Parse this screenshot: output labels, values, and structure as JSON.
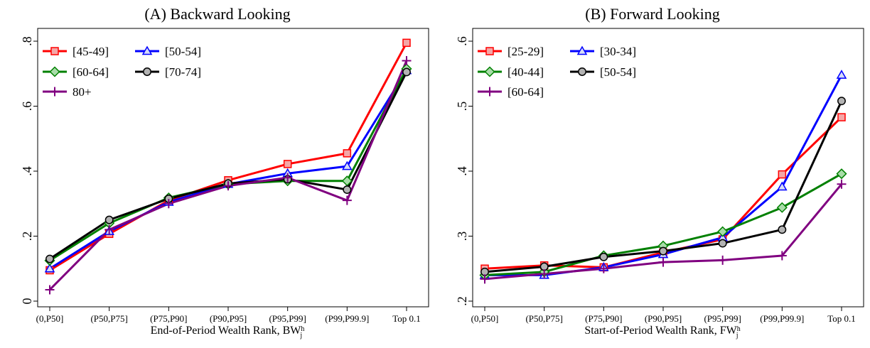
{
  "chart_data": [
    {
      "type": "line",
      "title_prefix": "(A)",
      "title": "Backward Looking",
      "xlabel": "End-of-Period Wealth Rank, BW",
      "xlabel_sup": "h",
      "xlabel_sub": "j",
      "categories": [
        "(0,P50]",
        "(P50,P75]",
        "(P75,P90]",
        "(P90,P95]",
        "(P95,P99]",
        "(P99,P99.9]",
        "Top 0.1"
      ],
      "ylim": [
        0,
        0.8
      ],
      "yticks": [
        0,
        0.2,
        0.4,
        0.6,
        0.8
      ],
      "ytick_labels": [
        "0",
        ".2",
        ".4",
        ".6",
        ".8"
      ],
      "grid": false,
      "legend_position": "top-left",
      "series": [
        {
          "name": "[45-49]",
          "color": "#ff0000",
          "marker": "square",
          "values": [
            0.095,
            0.207,
            0.31,
            0.372,
            0.422,
            0.455,
            0.795
          ]
        },
        {
          "name": "[50-54]",
          "color": "#0000ff",
          "marker": "triangle",
          "values": [
            0.1,
            0.215,
            0.305,
            0.36,
            0.393,
            0.415,
            0.71
          ]
        },
        {
          "name": "[60-64]",
          "color": "#008000",
          "marker": "diamond",
          "values": [
            0.125,
            0.24,
            0.318,
            0.36,
            0.37,
            0.37,
            0.715
          ]
        },
        {
          "name": "[70-74]",
          "color": "#000000",
          "marker": "circle",
          "values": [
            0.13,
            0.25,
            0.315,
            0.362,
            0.375,
            0.343,
            0.705
          ]
        },
        {
          "name": "80+",
          "color": "#800080",
          "marker": "plus",
          "values": [
            0.035,
            0.22,
            0.3,
            0.355,
            0.38,
            0.31,
            0.74
          ]
        }
      ]
    },
    {
      "type": "line",
      "title_prefix": "(B)",
      "title": "Forward Looking",
      "xlabel": "Start-of-Period Wealth Rank, FW",
      "xlabel_sup": "h",
      "xlabel_sub": "j",
      "categories": [
        "(0,P50]",
        "(P50,P75]",
        "(P75,P90]",
        "(P90,P95]",
        "(P95,P99]",
        "(P99,P99.9]",
        "Top 0.1"
      ],
      "ylim": [
        0.2,
        0.6
      ],
      "yticks": [
        0.2,
        0.3,
        0.4,
        0.5,
        0.6
      ],
      "ytick_labels": [
        ".2",
        ".3",
        ".4",
        ".5",
        ".6"
      ],
      "grid": false,
      "legend_position": "top-left",
      "series": [
        {
          "name": "[25-29]",
          "color": "#ff0000",
          "marker": "square",
          "values": [
            0.25,
            0.255,
            0.252,
            0.275,
            0.295,
            0.395,
            0.483
          ]
        },
        {
          "name": "[30-34]",
          "color": "#0000ff",
          "marker": "triangle",
          "values": [
            0.24,
            0.24,
            0.252,
            0.272,
            0.298,
            0.376,
            0.548
          ]
        },
        {
          "name": "[40-44]",
          "color": "#008000",
          "marker": "diamond",
          "values": [
            0.24,
            0.245,
            0.27,
            0.285,
            0.307,
            0.344,
            0.396
          ]
        },
        {
          "name": "[50-54]",
          "color": "#000000",
          "marker": "circle",
          "values": [
            0.245,
            0.253,
            0.268,
            0.277,
            0.289,
            0.31,
            0.508
          ]
        },
        {
          "name": "[60-64]",
          "color": "#800080",
          "marker": "plus",
          "values": [
            0.234,
            0.242,
            0.25,
            0.26,
            0.263,
            0.27,
            0.38
          ]
        }
      ]
    }
  ]
}
